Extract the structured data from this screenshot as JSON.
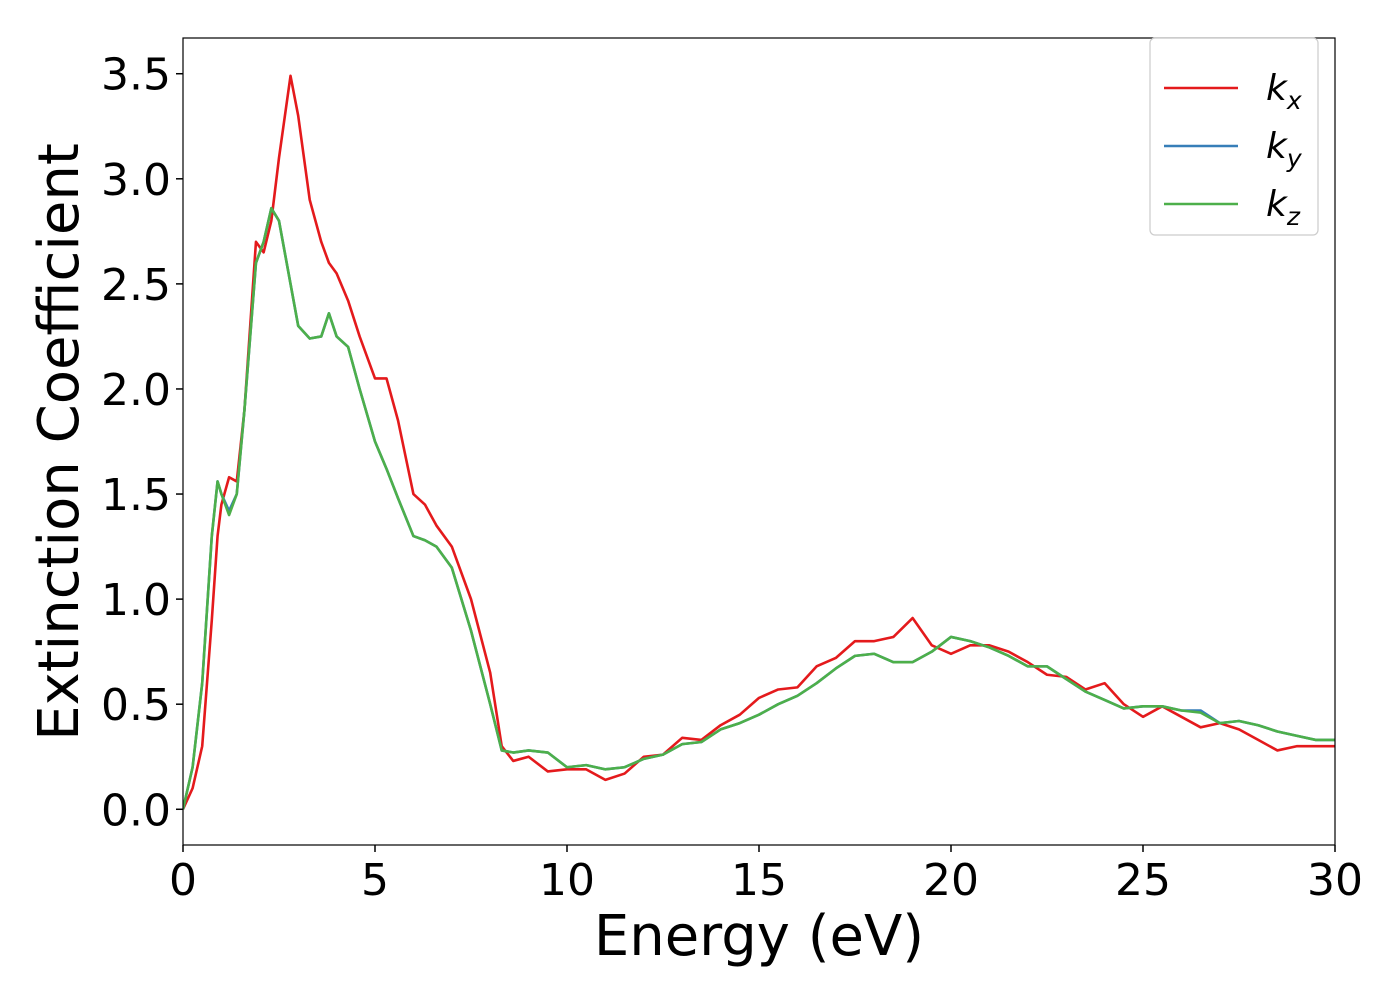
{
  "chart_data": {
    "type": "line",
    "xlabel": "Energy (eV)",
    "ylabel": "Extinction Coefficient",
    "x": [
      0,
      0.25,
      0.5,
      0.75,
      0.9,
      1.0,
      1.2,
      1.4,
      1.6,
      1.9,
      2.1,
      2.3,
      2.5,
      2.8,
      3.0,
      3.3,
      3.6,
      3.8,
      4.0,
      4.3,
      4.6,
      5.0,
      5.3,
      5.6,
      6.0,
      6.3,
      6.6,
      7.0,
      7.5,
      8.0,
      8.3,
      8.6,
      9.0,
      9.5,
      10,
      10.5,
      11,
      11.5,
      12,
      12.5,
      13,
      13.5,
      14,
      14.5,
      15,
      15.5,
      16,
      16.5,
      17,
      17.5,
      18,
      18.5,
      19,
      19.5,
      20,
      20.5,
      21,
      21.5,
      22,
      22.5,
      23,
      23.5,
      24,
      24.5,
      25,
      25.5,
      26,
      26.5,
      27,
      27.5,
      28,
      28.5,
      29,
      29.5,
      30
    ],
    "series": [
      {
        "name": "kx",
        "color": "#e41a1c",
        "values": [
          0.0,
          0.1,
          0.3,
          0.9,
          1.3,
          1.45,
          1.58,
          1.56,
          1.9,
          2.7,
          2.65,
          2.8,
          3.1,
          3.49,
          3.3,
          2.9,
          2.7,
          2.6,
          2.55,
          2.42,
          2.25,
          2.05,
          2.05,
          1.85,
          1.5,
          1.45,
          1.35,
          1.25,
          1.0,
          0.65,
          0.3,
          0.23,
          0.25,
          0.18,
          0.19,
          0.19,
          0.14,
          0.17,
          0.25,
          0.26,
          0.34,
          0.33,
          0.4,
          0.45,
          0.53,
          0.57,
          0.58,
          0.68,
          0.72,
          0.8,
          0.8,
          0.82,
          0.91,
          0.78,
          0.74,
          0.78,
          0.78,
          0.75,
          0.7,
          0.64,
          0.63,
          0.57,
          0.6,
          0.5,
          0.44,
          0.49,
          0.44,
          0.39,
          0.41,
          0.38,
          0.33,
          0.28,
          0.3,
          0.3,
          0.3
        ]
      },
      {
        "name": "ky",
        "color": "#377eb8",
        "values": [
          0.0,
          0.2,
          0.6,
          1.3,
          1.56,
          1.5,
          1.42,
          1.5,
          1.9,
          2.6,
          2.7,
          2.86,
          2.8,
          2.5,
          2.3,
          2.24,
          2.25,
          2.36,
          2.25,
          2.2,
          2.0,
          1.75,
          1.62,
          1.48,
          1.3,
          1.28,
          1.25,
          1.15,
          0.85,
          0.5,
          0.28,
          0.27,
          0.28,
          0.27,
          0.2,
          0.21,
          0.19,
          0.2,
          0.24,
          0.26,
          0.31,
          0.32,
          0.38,
          0.41,
          0.45,
          0.5,
          0.54,
          0.6,
          0.67,
          0.73,
          0.74,
          0.7,
          0.7,
          0.75,
          0.82,
          0.8,
          0.77,
          0.73,
          0.68,
          0.68,
          0.62,
          0.56,
          0.52,
          0.48,
          0.49,
          0.49,
          0.47,
          0.47,
          0.41,
          0.42,
          0.4,
          0.37,
          0.35,
          0.33,
          0.33
        ]
      },
      {
        "name": "kz",
        "color": "#4daf4a",
        "values": [
          0.0,
          0.2,
          0.6,
          1.3,
          1.56,
          1.5,
          1.4,
          1.5,
          1.9,
          2.6,
          2.7,
          2.86,
          2.8,
          2.5,
          2.3,
          2.24,
          2.25,
          2.36,
          2.25,
          2.2,
          2.0,
          1.75,
          1.62,
          1.48,
          1.3,
          1.28,
          1.25,
          1.15,
          0.85,
          0.5,
          0.28,
          0.27,
          0.28,
          0.27,
          0.2,
          0.21,
          0.19,
          0.2,
          0.24,
          0.26,
          0.31,
          0.32,
          0.38,
          0.41,
          0.45,
          0.5,
          0.54,
          0.6,
          0.67,
          0.73,
          0.74,
          0.7,
          0.7,
          0.75,
          0.82,
          0.8,
          0.77,
          0.73,
          0.68,
          0.68,
          0.62,
          0.56,
          0.52,
          0.48,
          0.49,
          0.49,
          0.47,
          0.46,
          0.41,
          0.42,
          0.4,
          0.37,
          0.35,
          0.33,
          0.33
        ]
      }
    ],
    "xlim": [
      0,
      30
    ],
    "ylim": [
      -0.17,
      3.67
    ],
    "xticks": [
      0,
      5,
      10,
      15,
      20,
      25,
      30
    ],
    "yticks": [
      {
        "value": 0,
        "label": "0.0"
      },
      0.5,
      {
        "value": 1,
        "label": "1.0"
      },
      1.5,
      {
        "value": 2,
        "label": "2.0"
      },
      2.5,
      {
        "value": 3,
        "label": "3.0"
      },
      3.5
    ],
    "legend": "upper right"
  }
}
